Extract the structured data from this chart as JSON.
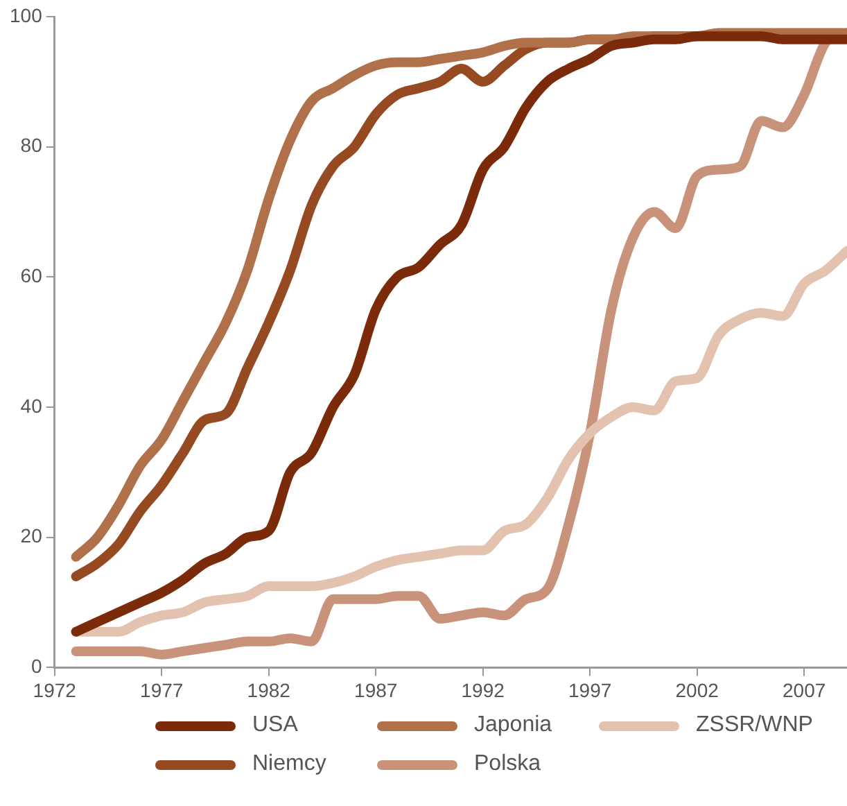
{
  "chart_data": {
    "type": "line",
    "x": [
      1973,
      1974,
      1975,
      1976,
      1977,
      1978,
      1979,
      1980,
      1981,
      1982,
      1983,
      1984,
      1985,
      1986,
      1987,
      1988,
      1989,
      1990,
      1991,
      1992,
      1993,
      1994,
      1995,
      1996,
      1997,
      1998,
      1999,
      2000,
      2001,
      2002,
      2003,
      2004,
      2005,
      2006,
      2007,
      2008,
      2009
    ],
    "series": [
      {
        "name": "USA",
        "color": "#7b2a0a",
        "values": [
          5.5,
          7,
          8.5,
          10,
          11.5,
          13.5,
          16,
          17.5,
          20,
          21,
          30,
          33,
          40,
          45,
          55,
          60,
          61.5,
          65,
          68,
          76.5,
          80,
          86,
          90,
          92,
          93.5,
          95.5,
          96,
          96.5,
          96.5,
          97,
          97,
          97,
          97,
          96.5,
          96.5,
          96.5,
          96.5
        ]
      },
      {
        "name": "Japonia",
        "color": "#b0704a",
        "values": [
          17,
          20,
          25,
          31,
          35,
          41,
          47,
          53,
          61,
          72,
          81,
          87,
          89,
          91,
          92.5,
          93,
          93,
          93.5,
          94,
          94.5,
          95.5,
          96,
          96,
          96,
          96.5,
          96.5,
          97,
          97,
          97,
          97,
          97.5,
          97.5,
          97.5,
          97.5,
          97.5,
          97.5,
          97.5
        ]
      },
      {
        "name": "ZSSR/WNP",
        "color": "#e3c3af",
        "values": [
          5.5,
          5.5,
          5.5,
          7,
          8,
          8.5,
          10,
          10.5,
          11,
          12.5,
          12.5,
          12.5,
          13,
          14,
          15.5,
          16.5,
          17,
          17.5,
          18,
          18,
          21,
          22,
          26,
          32,
          36,
          38.5,
          40,
          39.5,
          44,
          44.5,
          51,
          53.5,
          54.5,
          54,
          59,
          61,
          64
        ]
      },
      {
        "name": "Niemcy",
        "color": "#964a22",
        "values": [
          14,
          16,
          19,
          24,
          28,
          33,
          38,
          39,
          46,
          53,
          61,
          71,
          77,
          80,
          85,
          88,
          89,
          90,
          92,
          90,
          92.5,
          95,
          96,
          96,
          96.5,
          96.5,
          96.5,
          97,
          97,
          97,
          97,
          97,
          97,
          97,
          97,
          97,
          97
        ]
      },
      {
        "name": "Polska",
        "color": "#c8937a",
        "values": [
          2.5,
          2.5,
          2.5,
          2.5,
          2,
          2.5,
          3,
          3.5,
          4,
          4,
          4.5,
          4,
          10.5,
          10.5,
          10.5,
          11,
          11,
          7.5,
          8,
          8.5,
          8,
          10.5,
          12,
          22,
          36,
          55,
          66,
          70,
          67.5,
          75.5,
          76.5,
          77,
          84,
          83,
          88,
          96,
          97.5
        ]
      }
    ],
    "xlim": [
      1972,
      2009
    ],
    "xticks": [
      1972,
      1977,
      1982,
      1987,
      1992,
      1997,
      2002,
      2007
    ],
    "ylim": [
      0,
      100
    ],
    "yticks": [
      0,
      20,
      40,
      60,
      80,
      100
    ],
    "grid": false,
    "legend": "bottom",
    "marker": "none",
    "line_style": "solid"
  }
}
